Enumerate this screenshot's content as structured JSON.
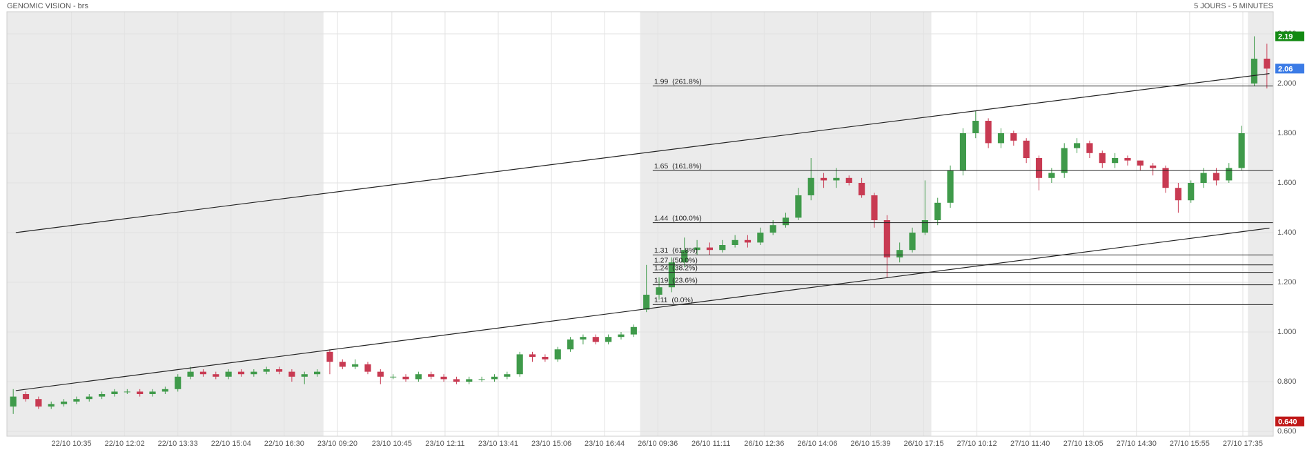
{
  "chart_data": {
    "type": "candlestick",
    "title": "GENOMIC VISION - brs",
    "subtitle": "5 JOURS - 5 MINUTES",
    "grid": true,
    "up_color": "#3f9a4a",
    "down_color": "#c83a52",
    "ylim": [
      0.6,
      2.2
    ],
    "yticks": [
      {
        "value": 0.6,
        "label": "0.600"
      },
      {
        "value": 0.8,
        "label": "0.800"
      },
      {
        "value": 1.0,
        "label": "1.000"
      },
      {
        "value": 1.2,
        "label": "1.200"
      },
      {
        "value": 1.4,
        "label": "1.400"
      },
      {
        "value": 1.6,
        "label": "1.600"
      },
      {
        "value": 1.8,
        "label": "1.800"
      },
      {
        "value": 2.0,
        "label": "2.000"
      },
      {
        "value": 2.2,
        "label": "2.200"
      }
    ],
    "xlim": [
      -0.5,
      99.5
    ],
    "xticks": [
      {
        "value": 4.6,
        "label": "22/10 10:35"
      },
      {
        "value": 8.8,
        "label": "22/10 12:02"
      },
      {
        "value": 13.0,
        "label": "22/10 13:33"
      },
      {
        "value": 17.2,
        "label": "22/10 15:04"
      },
      {
        "value": 21.4,
        "label": "22/10 16:30"
      },
      {
        "value": 25.6,
        "label": "23/10 09:20"
      },
      {
        "value": 29.9,
        "label": "23/10 10:45"
      },
      {
        "value": 34.1,
        "label": "23/10 12:11"
      },
      {
        "value": 38.3,
        "label": "23/10 13:41"
      },
      {
        "value": 42.5,
        "label": "23/10 15:06"
      },
      {
        "value": 46.7,
        "label": "23/10 16:44"
      },
      {
        "value": 50.9,
        "label": "26/10 09:36"
      },
      {
        "value": 55.1,
        "label": "26/10 11:11"
      },
      {
        "value": 59.3,
        "label": "26/10 12:36"
      },
      {
        "value": 63.5,
        "label": "26/10 14:06"
      },
      {
        "value": 67.7,
        "label": "26/10 15:39"
      },
      {
        "value": 71.9,
        "label": "26/10 17:15"
      },
      {
        "value": 76.1,
        "label": "27/10 10:12"
      },
      {
        "value": 80.3,
        "label": "27/10 11:40"
      },
      {
        "value": 84.5,
        "label": "27/10 13:05"
      },
      {
        "value": 88.7,
        "label": "27/10 14:30"
      },
      {
        "value": 92.9,
        "label": "27/10 15:55"
      },
      {
        "value": 97.1,
        "label": "27/10 17:35"
      }
    ],
    "shaded_ranges": [
      [
        -0.5,
        24.5
      ],
      [
        49.5,
        72.5
      ],
      [
        97.5,
        99.5
      ]
    ],
    "open": [
      0.7,
      0.75,
      0.73,
      0.7,
      0.71,
      0.72,
      0.73,
      0.74,
      0.75,
      0.76,
      0.76,
      0.75,
      0.76,
      0.77,
      0.82,
      0.84,
      0.83,
      0.82,
      0.84,
      0.83,
      0.84,
      0.85,
      0.84,
      0.82,
      0.83,
      0.92,
      0.88,
      0.86,
      0.87,
      0.84,
      0.82,
      0.82,
      0.81,
      0.83,
      0.82,
      0.81,
      0.8,
      0.81,
      0.81,
      0.82,
      0.83,
      0.91,
      0.9,
      0.89,
      0.93,
      0.97,
      0.98,
      0.96,
      0.98,
      0.99,
      1.09,
      1.15,
      1.18,
      1.28,
      1.33,
      1.34,
      1.33,
      1.35,
      1.37,
      1.36,
      1.4,
      1.43,
      1.46,
      1.55,
      1.62,
      1.61,
      1.62,
      1.6,
      1.55,
      1.45,
      1.3,
      1.33,
      1.4,
      1.45,
      1.52,
      1.65,
      1.8,
      1.85,
      1.76,
      1.8,
      1.77,
      1.7,
      1.62,
      1.64,
      1.74,
      1.76,
      1.72,
      1.68,
      1.7,
      1.69,
      1.67,
      1.66,
      1.58,
      1.53,
      1.6,
      1.64,
      1.61,
      1.66,
      2.0,
      2.1
    ],
    "high": [
      0.77,
      0.76,
      0.74,
      0.72,
      0.73,
      0.74,
      0.75,
      0.76,
      0.77,
      0.77,
      0.77,
      0.77,
      0.78,
      0.83,
      0.86,
      0.85,
      0.84,
      0.85,
      0.85,
      0.85,
      0.86,
      0.86,
      0.85,
      0.84,
      0.85,
      0.93,
      0.89,
      0.89,
      0.88,
      0.85,
      0.83,
      0.83,
      0.84,
      0.84,
      0.83,
      0.82,
      0.82,
      0.82,
      0.83,
      0.84,
      0.92,
      0.92,
      0.91,
      0.94,
      0.98,
      0.99,
      0.99,
      0.99,
      1.0,
      1.03,
      1.27,
      1.22,
      1.3,
      1.38,
      1.37,
      1.36,
      1.37,
      1.39,
      1.39,
      1.42,
      1.45,
      1.48,
      1.58,
      1.7,
      1.64,
      1.66,
      1.63,
      1.62,
      1.56,
      1.47,
      1.36,
      1.42,
      1.61,
      1.54,
      1.67,
      1.82,
      1.89,
      1.86,
      1.82,
      1.81,
      1.78,
      1.71,
      1.66,
      1.76,
      1.78,
      1.77,
      1.73,
      1.72,
      1.71,
      1.69,
      1.68,
      1.67,
      1.6,
      1.61,
      1.66,
      1.66,
      1.68,
      1.83,
      2.19,
      2.16
    ],
    "low": [
      0.67,
      0.72,
      0.69,
      0.69,
      0.7,
      0.71,
      0.72,
      0.73,
      0.74,
      0.75,
      0.74,
      0.74,
      0.75,
      0.76,
      0.81,
      0.82,
      0.81,
      0.81,
      0.82,
      0.82,
      0.83,
      0.83,
      0.8,
      0.79,
      0.82,
      0.83,
      0.85,
      0.85,
      0.83,
      0.79,
      0.81,
      0.8,
      0.8,
      0.81,
      0.8,
      0.79,
      0.79,
      0.8,
      0.8,
      0.81,
      0.82,
      0.88,
      0.88,
      0.88,
      0.92,
      0.95,
      0.95,
      0.95,
      0.97,
      0.98,
      1.08,
      1.13,
      1.16,
      1.26,
      1.31,
      1.31,
      1.32,
      1.34,
      1.34,
      1.35,
      1.39,
      1.42,
      1.45,
      1.53,
      1.58,
      1.58,
      1.59,
      1.54,
      1.42,
      1.22,
      1.28,
      1.32,
      1.39,
      1.43,
      1.5,
      1.63,
      1.78,
      1.74,
      1.74,
      1.75,
      1.68,
      1.57,
      1.6,
      1.62,
      1.72,
      1.7,
      1.66,
      1.66,
      1.67,
      1.65,
      1.63,
      1.56,
      1.48,
      1.52,
      1.58,
      1.59,
      1.6,
      1.65,
      1.99,
      1.98
    ],
    "close": [
      0.74,
      0.73,
      0.7,
      0.71,
      0.72,
      0.73,
      0.74,
      0.75,
      0.76,
      0.76,
      0.75,
      0.76,
      0.77,
      0.82,
      0.84,
      0.83,
      0.82,
      0.84,
      0.83,
      0.84,
      0.85,
      0.84,
      0.82,
      0.83,
      0.84,
      0.88,
      0.86,
      0.87,
      0.84,
      0.82,
      0.82,
      0.81,
      0.83,
      0.82,
      0.81,
      0.8,
      0.81,
      0.81,
      0.82,
      0.83,
      0.91,
      0.9,
      0.89,
      0.93,
      0.97,
      0.98,
      0.96,
      0.98,
      0.99,
      1.02,
      1.15,
      1.18,
      1.28,
      1.33,
      1.34,
      1.33,
      1.35,
      1.37,
      1.36,
      1.4,
      1.43,
      1.46,
      1.55,
      1.62,
      1.61,
      1.62,
      1.6,
      1.55,
      1.45,
      1.3,
      1.33,
      1.4,
      1.45,
      1.52,
      1.65,
      1.8,
      1.85,
      1.76,
      1.8,
      1.77,
      1.7,
      1.62,
      1.64,
      1.74,
      1.76,
      1.72,
      1.68,
      1.7,
      1.69,
      1.67,
      1.66,
      1.58,
      1.53,
      1.6,
      1.64,
      1.61,
      1.66,
      1.8,
      2.1,
      2.06
    ],
    "trend_lines": [
      {
        "x": [
          0.2,
          99.2
        ],
        "y": [
          1.4,
          2.04
        ]
      },
      {
        "x": [
          0.2,
          99.2
        ],
        "y": [
          0.764,
          1.418
        ]
      }
    ],
    "levels_start": 50.5,
    "levels": [
      {
        "value": 1.99,
        "label": "1.99  (261.8%)"
      },
      {
        "value": 1.65,
        "label": "1.65  (161.8%)"
      },
      {
        "value": 1.44,
        "label": "1.44  (100.0%)"
      },
      {
        "value": 1.31,
        "label": "1.31  (61.8%)"
      },
      {
        "value": 1.27,
        "label": "1.27  (50.0%)"
      },
      {
        "value": 1.24,
        "label": "1.24  (38.2%)"
      },
      {
        "value": 1.19,
        "label": "1.19  (23.6%)"
      },
      {
        "value": 1.11,
        "label": "1.11  (0.0%)"
      }
    ],
    "price_tags": [
      {
        "value": 2.19,
        "color": "#138a13"
      },
      {
        "value": 2.06,
        "color": "#3b7be6"
      },
      {
        "value": 0.64,
        "label": "0.640",
        "color": "#c01818"
      }
    ]
  }
}
